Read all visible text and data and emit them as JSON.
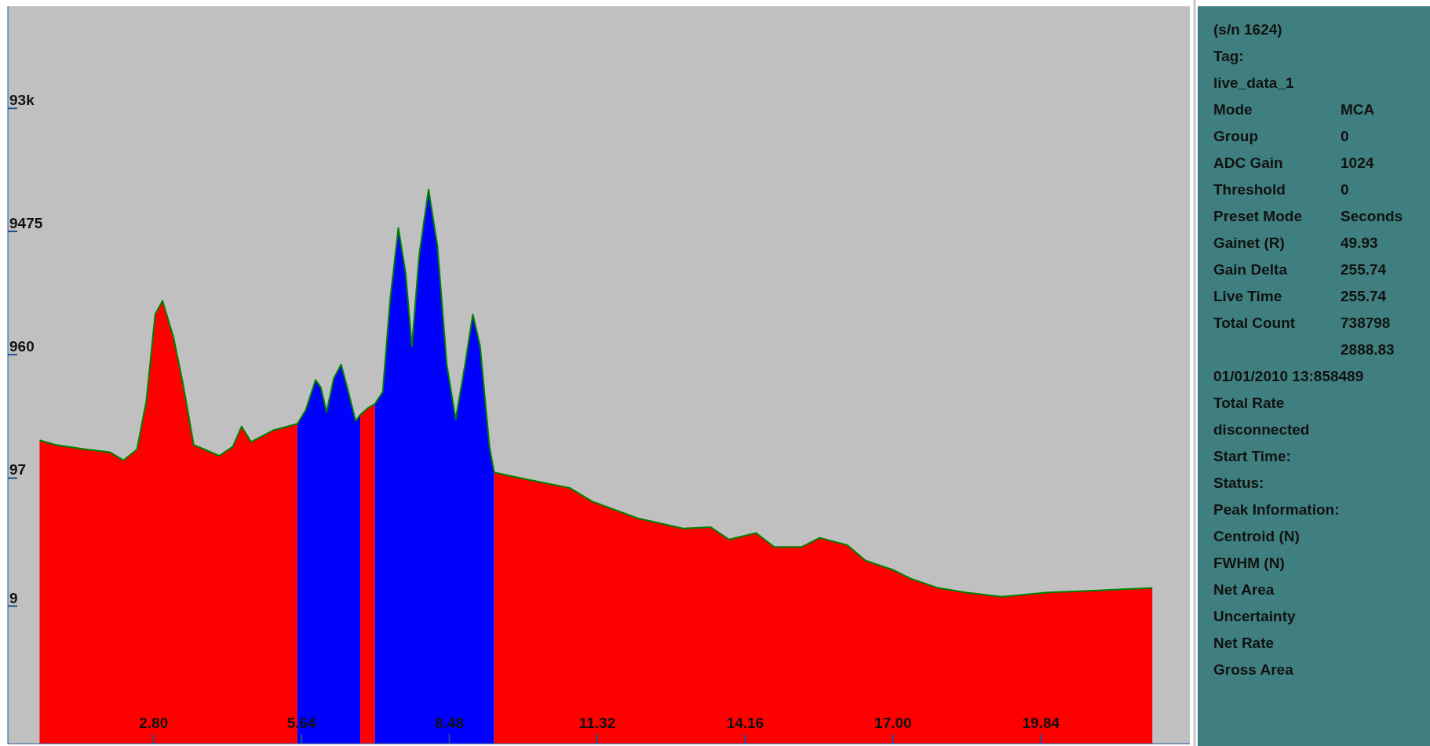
{
  "chart_data": [
    {
      "type": "area",
      "log": "y",
      "grid": false,
      "xlim": [
        0,
        22.7
      ],
      "ylim": [
        0.7,
        620000
      ],
      "xticks": [
        {
          "value": 2.8,
          "label": "2.80"
        },
        {
          "value": 5.64,
          "label": "5.64"
        },
        {
          "value": 8.48,
          "label": "8.48"
        },
        {
          "value": 11.32,
          "label": "11.32"
        },
        {
          "value": 14.16,
          "label": "14.16"
        },
        {
          "value": 17,
          "label": "17.00"
        },
        {
          "value": 19.84,
          "label": "19.84"
        }
      ],
      "yticks": [
        9,
        97,
        960,
        9475,
        {
          "value": 93000,
          "label": "93k"
        }
      ],
      "series": [
        {
          "color": "#ff0000",
          "x": [
            0.61,
            0.91,
            1.43,
            1.96,
            2.22,
            2.48,
            2.66,
            2.83,
            2.97,
            3.18,
            3.36,
            3.57,
            4.06,
            4.32,
            4.49,
            4.67,
            5.1,
            5.56
          ],
          "values": [
            196,
            180,
            167,
            157,
            135,
            165,
            406,
            2030,
            2610,
            1330,
            569,
            180,
            147,
            174,
            253,
            190,
            236,
            266
          ]
        },
        {
          "color": "#0000ff",
          "x": [
            5.56,
            5.72,
            5.91,
            6.01,
            6.12,
            6.26,
            6.4,
            6.54,
            6.68,
            6.77
          ],
          "values": [
            266,
            343,
            600,
            524,
            331,
            620,
            798,
            481,
            280,
            315
          ]
        },
        {
          "color": "#ff0000",
          "x": [
            6.77,
            6.91,
            7.05
          ],
          "values": [
            315,
            355,
            385
          ]
        },
        {
          "color": "#0000ff",
          "x": [
            7.05,
            7.2,
            7.34,
            7.5,
            7.64,
            7.76,
            7.9,
            8.08,
            8.25,
            8.43,
            8.6,
            8.78,
            8.93,
            9.07,
            9.25,
            9.34
          ],
          "values": [
            385,
            481,
            2610,
            10100,
            4340,
            1120,
            6100,
            20600,
            7210,
            798,
            289,
            798,
            2030,
            1120,
            174,
            108
          ]
        },
        {
          "color": "#ff0000",
          "x": [
            9.34,
            9.65,
            10.35,
            10.79,
            11.22,
            12.1,
            12.97,
            13.5,
            13.85,
            14.37,
            14.72,
            15.24,
            15.59,
            16.12,
            16.47,
            16.99,
            17.34,
            17.87,
            18.39,
            19.09,
            19.97,
            20.84,
            21.98
          ],
          "values": [
            108,
            101,
            88,
            81,
            63,
            46,
            38,
            39,
            31,
            35,
            27,
            27,
            32,
            28,
            21,
            17.7,
            15,
            12.6,
            11.6,
            10.7,
            11.6,
            12,
            12.6
          ]
        },
        {
          "type": "line",
          "color": "#008000",
          "x": [
            0.61,
            0.91,
            1.43,
            1.96,
            2.22,
            2.48,
            2.66,
            2.83,
            2.97,
            3.18,
            3.36,
            3.57,
            4.06,
            4.32,
            4.49,
            4.67,
            5.1,
            5.56,
            5.72,
            5.91,
            6.01,
            6.12,
            6.26,
            6.4,
            6.54,
            6.68,
            6.77,
            6.91,
            7.05,
            7.2,
            7.34,
            7.5,
            7.64,
            7.76,
            7.9,
            8.08,
            8.25,
            8.43,
            8.6,
            8.78,
            8.93,
            9.07,
            9.25,
            9.34,
            9.65,
            10.35,
            10.79,
            11.22,
            12.1,
            12.97,
            13.5,
            13.85,
            14.37,
            14.72,
            15.24,
            15.59,
            16.12,
            16.47,
            16.99,
            17.34,
            17.87,
            18.39,
            19.09,
            19.97,
            20.84,
            21.98
          ],
          "values": [
            196,
            180,
            167,
            157,
            135,
            165,
            406,
            2030,
            2610,
            1330,
            569,
            180,
            147,
            174,
            253,
            190,
            236,
            266,
            343,
            600,
            524,
            331,
            620,
            798,
            481,
            280,
            315,
            355,
            385,
            481,
            2610,
            10100,
            4340,
            1120,
            6100,
            20600,
            7210,
            798,
            289,
            798,
            2030,
            1120,
            174,
            108,
            101,
            88,
            81,
            63,
            46,
            38,
            39,
            31,
            35,
            27,
            27,
            32,
            28,
            21,
            17.7,
            15,
            12.6,
            11.6,
            10.7,
            11.6,
            12,
            12.6
          ]
        }
      ]
    },
    {
      "type": "other",
      "annotations": [
        "(s/n 1624)",
        "Tag:",
        "live_data_1",
        "Mode\tMCA",
        "Group\t0",
        "ADC Gain\t1024",
        "Threshold\t0",
        "Preset Mode\tSeconds",
        "Gainet (R)\t49.93",
        "Gain Delta\t255.74",
        "Live Time\t255.74",
        "Total Count\t738798",
        "\t2888.83",
        "01/01/2010 13:858489",
        "Total Rate",
        "disconnected",
        "Start Time:",
        "Status:",
        "Peak Information:",
        "Centroid (N)",
        "FWHM (N)",
        "Net Area",
        "Uncertainty",
        "Net Rate",
        "Gross Area"
      ]
    }
  ]
}
